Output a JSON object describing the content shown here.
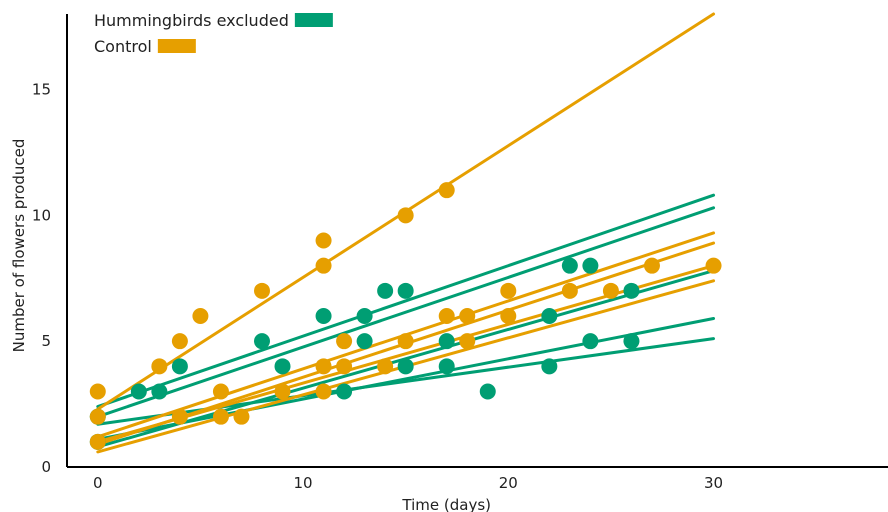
{
  "chart_data": {
    "type": "scatter",
    "title": "",
    "xlabel": "Time (days)",
    "ylabel": "Number of flowers produced",
    "xlim": [
      -1.5,
      38.5
    ],
    "ylim": [
      0,
      18
    ],
    "xticks": [
      0,
      10,
      20,
      30
    ],
    "xtick_labels": [
      "0",
      "10",
      "20",
      "30"
    ],
    "yticks": [
      0,
      5,
      10,
      15
    ],
    "ytick_labels": [
      "0",
      "5",
      "10",
      "15"
    ],
    "grid": false,
    "legend_position": "top-left",
    "series": [
      {
        "name": "Hummingbirds excluded",
        "color": "#009E73",
        "points": [
          [
            0,
            1
          ],
          [
            0,
            2
          ],
          [
            2,
            3
          ],
          [
            3,
            3
          ],
          [
            4,
            4
          ],
          [
            8,
            5
          ],
          [
            9,
            4
          ],
          [
            11,
            6
          ],
          [
            12,
            3
          ],
          [
            13,
            5
          ],
          [
            13,
            6
          ],
          [
            14,
            7
          ],
          [
            15,
            7
          ],
          [
            15,
            4
          ],
          [
            17,
            5
          ],
          [
            17,
            4
          ],
          [
            19,
            3
          ],
          [
            22,
            6
          ],
          [
            22,
            4
          ],
          [
            23,
            8
          ],
          [
            24,
            8
          ],
          [
            24,
            5
          ],
          [
            26,
            7
          ],
          [
            26,
            5
          ]
        ],
        "fit_lines": [
          [
            [
              0,
              2.4
            ],
            [
              30,
              10.8
            ]
          ],
          [
            [
              0,
              2.0
            ],
            [
              30,
              10.3
            ]
          ],
          [
            [
              0,
              0.8
            ],
            [
              30,
              7.8
            ]
          ],
          [
            [
              0,
              1.1
            ],
            [
              30,
              5.9
            ]
          ],
          [
            [
              0,
              1.7
            ],
            [
              30,
              5.1
            ]
          ]
        ]
      },
      {
        "name": "Control",
        "color": "#E69F00",
        "points": [
          [
            0,
            3
          ],
          [
            0,
            2
          ],
          [
            0,
            1
          ],
          [
            3,
            4
          ],
          [
            4,
            5
          ],
          [
            4,
            2
          ],
          [
            5,
            6
          ],
          [
            6,
            3
          ],
          [
            6,
            2
          ],
          [
            7,
            2
          ],
          [
            8,
            7
          ],
          [
            9,
            3
          ],
          [
            11,
            9
          ],
          [
            11,
            8
          ],
          [
            11,
            4
          ],
          [
            11,
            3
          ],
          [
            12,
            5
          ],
          [
            12,
            4
          ],
          [
            14,
            4
          ],
          [
            15,
            10
          ],
          [
            15,
            5
          ],
          [
            17,
            11
          ],
          [
            17,
            6
          ],
          [
            18,
            6
          ],
          [
            18,
            5
          ],
          [
            20,
            7
          ],
          [
            20,
            6
          ],
          [
            23,
            7
          ],
          [
            25,
            7
          ],
          [
            27,
            8
          ],
          [
            30,
            8
          ]
        ],
        "fit_lines": [
          [
            [
              0,
              2.3
            ],
            [
              30,
              18.0
            ]
          ],
          [
            [
              0,
              1.2
            ],
            [
              30,
              9.3
            ]
          ],
          [
            [
              0,
              0.9
            ],
            [
              30,
              8.9
            ]
          ],
          [
            [
              0,
              1.0
            ],
            [
              30,
              8.0
            ]
          ],
          [
            [
              0,
              0.6
            ],
            [
              30,
              7.4
            ]
          ]
        ]
      }
    ]
  }
}
